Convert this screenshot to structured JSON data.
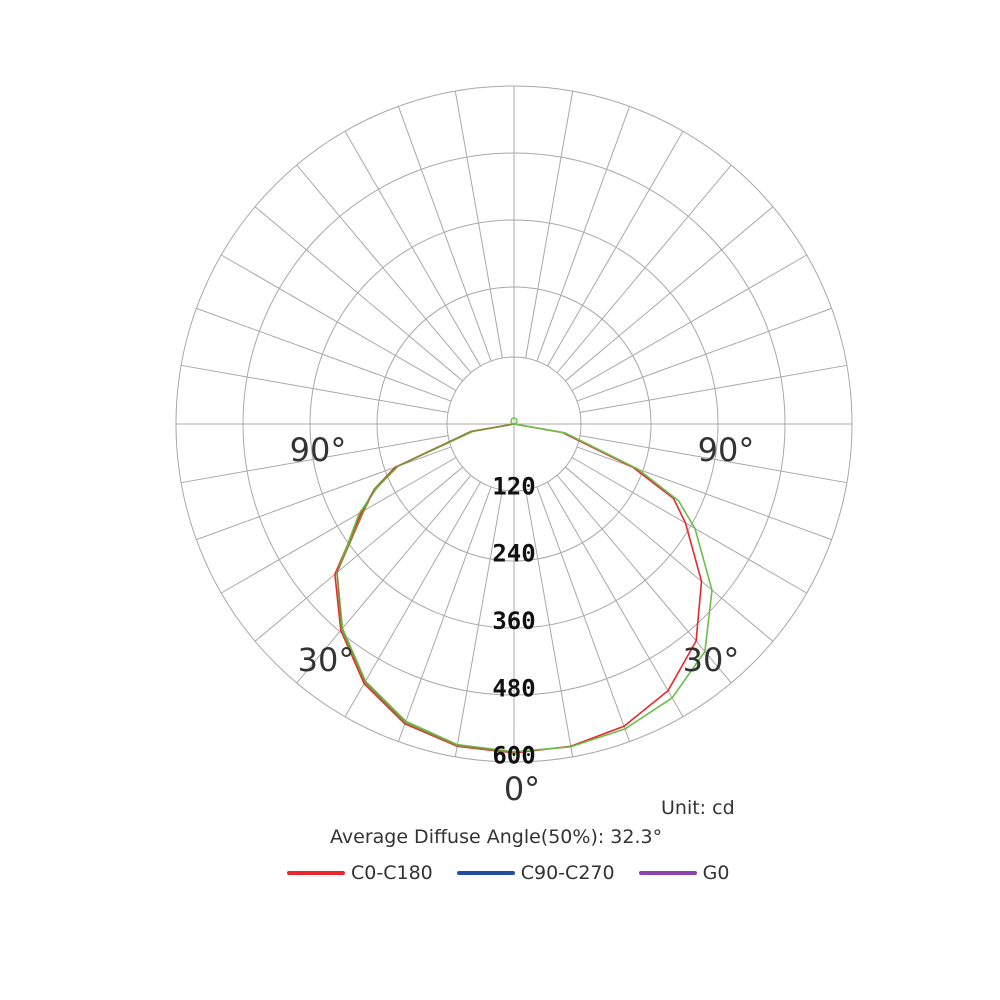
{
  "chart_data": {
    "type": "polar",
    "title": "",
    "unit_label": "Unit: cd",
    "diffuse_angle_text": "Average Diffuse Angle(50%): 32.3°",
    "radial_max": 600,
    "radial_ticks": [
      "120",
      "240",
      "360",
      "480",
      "600"
    ],
    "radial_tick_values": [
      120,
      240,
      360,
      480,
      600
    ],
    "angle_labels": {
      "left_90": "90°",
      "right_90": "90°",
      "left_30": "30°",
      "right_30": "30°",
      "bottom_0": "0°"
    },
    "grid": true,
    "spoke_step_deg": 10,
    "legend_placement": "bottom",
    "legend": [
      {
        "name": "C0-C180",
        "color": "#e8272d"
      },
      {
        "name": "C90-C270",
        "color": "#1f4fa3"
      },
      {
        "name": "G0",
        "color": "#8e44ad"
      }
    ],
    "series": [
      {
        "name": "C0-C180",
        "color": "#e8272d",
        "angles_deg": [
          -90,
          -80,
          -70,
          -65,
          -60,
          -50,
          -40,
          -30,
          -20,
          -10,
          0,
          10,
          20,
          30,
          40,
          50,
          60,
          65,
          70,
          80,
          90
        ],
        "values": [
          0,
          80,
          230,
          280,
          320,
          425,
          490,
          545,
          580,
          595,
          598,
          595,
          585,
          560,
          515,
          445,
          360,
          320,
          230,
          90,
          0
        ]
      },
      {
        "name": "",
        "color": "#6abf4b",
        "angles_deg": [
          -90,
          -80,
          -70,
          -65,
          -60,
          -50,
          -40,
          -30,
          -20,
          -10,
          0,
          10,
          20,
          30,
          40,
          50,
          60,
          65,
          70,
          80,
          90
        ],
        "values": [
          0,
          75,
          225,
          275,
          325,
          420,
          485,
          540,
          575,
          592,
          596,
          596,
          590,
          575,
          540,
          470,
          380,
          330,
          240,
          95,
          0
        ]
      },
      {
        "name": "",
        "color": "#8a8a3c",
        "angles_deg": [
          -90,
          -80,
          -70,
          -65,
          -60,
          -50,
          -40,
          -30,
          -20,
          -10,
          0
        ],
        "values": [
          0,
          80,
          225,
          280,
          315,
          420,
          488,
          542,
          578,
          594,
          597
        ]
      }
    ]
  }
}
